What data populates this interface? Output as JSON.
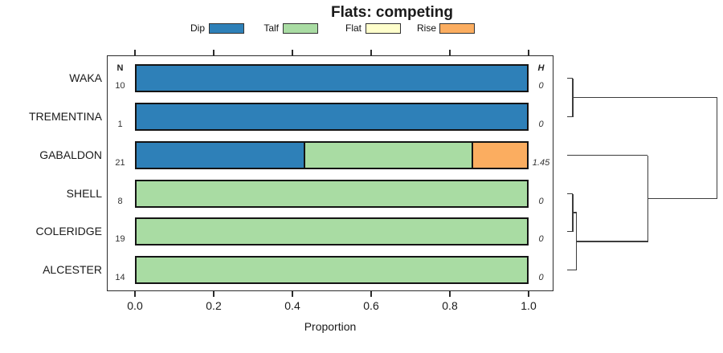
{
  "title": "Flats: competing",
  "legend": {
    "items": [
      {
        "label": "Dip",
        "color": "#2E80B8"
      },
      {
        "label": "Talf",
        "color": "#A9DCA3"
      },
      {
        "label": "Flat",
        "color": "#FFFFCC"
      },
      {
        "label": "Rise",
        "color": "#FBAD60"
      }
    ]
  },
  "plot": {
    "n_header": "N",
    "h_header": "H",
    "rows": [
      {
        "site": "WAKA",
        "n": "10",
        "h": "0",
        "segments": [
          {
            "category": "Dip",
            "value": 1
          }
        ]
      },
      {
        "site": "TREMENTINA",
        "n": "1",
        "h": "0",
        "segments": [
          {
            "category": "Dip",
            "value": 1
          }
        ]
      },
      {
        "site": "GABALDON",
        "n": "21",
        "h": "1.45",
        "segments": [
          {
            "category": "Dip",
            "value": 0.429
          },
          {
            "category": "Talf",
            "value": 0.429
          },
          {
            "category": "Rise",
            "value": 0.142
          }
        ]
      },
      {
        "site": "SHELL",
        "n": "8",
        "h": "0",
        "segments": [
          {
            "category": "Talf",
            "value": 1
          }
        ]
      },
      {
        "site": "COLERIDGE",
        "n": "19",
        "h": "0",
        "segments": [
          {
            "category": "Talf",
            "value": 1
          }
        ]
      },
      {
        "site": "ALCESTER",
        "n": "14",
        "h": "0",
        "segments": [
          {
            "category": "Talf",
            "value": 1
          }
        ]
      }
    ]
  },
  "axis": {
    "label": "Proportion",
    "ticks": [
      "0.0",
      "0.2",
      "0.4",
      "0.6",
      "0.8",
      "1.0"
    ]
  },
  "chart_data": {
    "type": "bar",
    "orientation": "horizontal",
    "stacked": true,
    "title": "Flats: competing",
    "xlabel": "Proportion",
    "xlim": [
      0,
      1
    ],
    "xticks": [
      0.0,
      0.2,
      0.4,
      0.6,
      0.8,
      1.0
    ],
    "grid": false,
    "legend_position": "top",
    "categories": [
      "WAKA",
      "TREMENTINA",
      "GABALDON",
      "SHELL",
      "COLERIDGE",
      "ALCESTER"
    ],
    "n_values": [
      10,
      1,
      21,
      8,
      19,
      14
    ],
    "h_values": [
      0,
      0,
      1.45,
      0,
      0,
      0
    ],
    "series": [
      {
        "name": "Dip",
        "color": "#2E80B8",
        "values": [
          1,
          1,
          0.429,
          0,
          0,
          0
        ]
      },
      {
        "name": "Talf",
        "color": "#A9DCA3",
        "values": [
          0,
          0,
          0.429,
          1,
          1,
          1
        ]
      },
      {
        "name": "Flat",
        "color": "#FFFFCC",
        "values": [
          0,
          0,
          0,
          0,
          0,
          0
        ]
      },
      {
        "name": "Rise",
        "color": "#FBAD60",
        "values": [
          0,
          0,
          0.142,
          0,
          0,
          0
        ]
      }
    ],
    "dendrogram": {
      "position": "right",
      "clusters": "WAKA+TREMENTINA form one cluster; SHELL+COLERIDGE join ALCESTER, then GABALDON joins that cluster; root joins both clusters"
    }
  }
}
